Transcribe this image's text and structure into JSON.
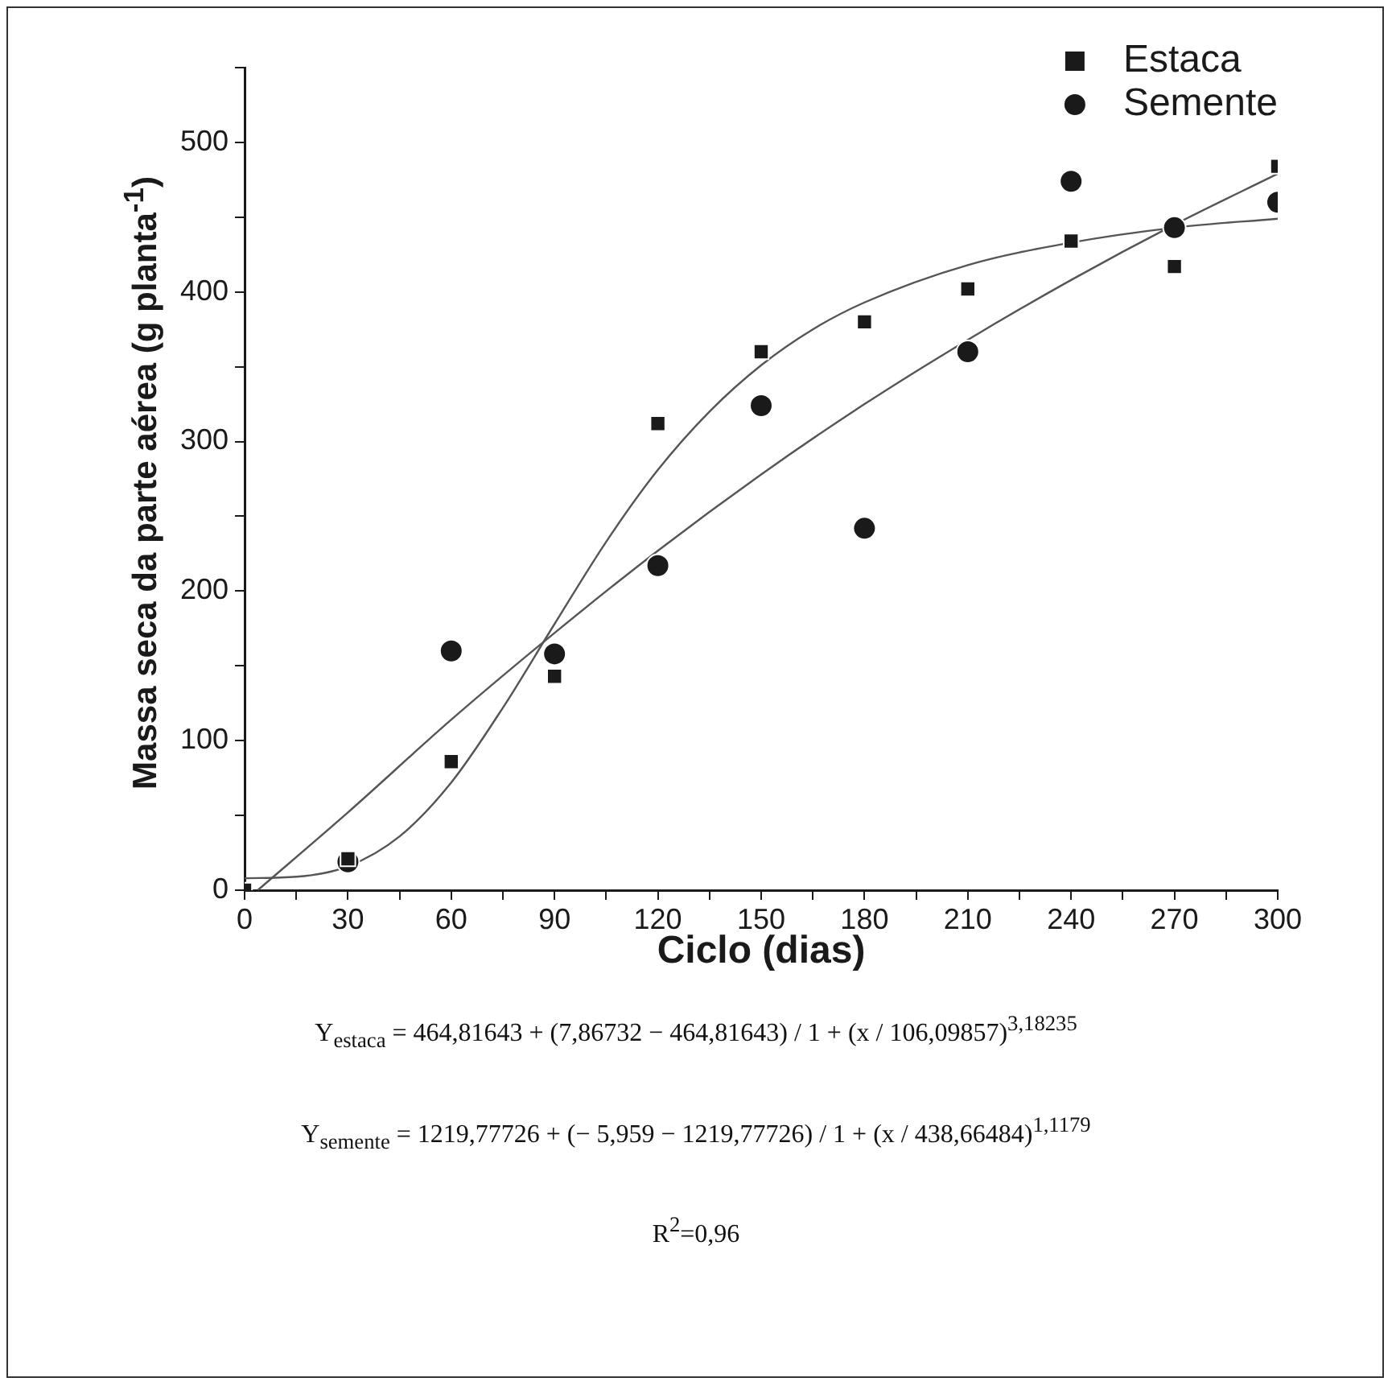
{
  "chart_data": {
    "type": "scatter",
    "xlabel": "Ciclo (dias)",
    "ylabel": "Massa seca da parte aérea (g planta$^{-1}$)",
    "xlim": [
      0,
      300
    ],
    "ylim": [
      0,
      550
    ],
    "xticks": [
      0,
      {
        "value": 15,
        "label": null
      },
      30,
      {
        "value": 45,
        "label": null
      },
      60,
      {
        "value": 75,
        "label": null
      },
      90,
      {
        "value": 105,
        "label": null
      },
      120,
      {
        "value": 135,
        "label": null
      },
      150,
      {
        "value": 165,
        "label": null
      },
      180,
      {
        "value": 195,
        "label": null
      },
      210,
      {
        "value": 225,
        "label": null
      },
      240,
      {
        "value": 255,
        "label": null
      },
      270,
      {
        "value": 285,
        "label": null
      },
      300
    ],
    "yticks": [
      0,
      {
        "value": 50,
        "label": null
      },
      100,
      {
        "value": 150,
        "label": null
      },
      200,
      {
        "value": 250,
        "label": null
      },
      300,
      {
        "value": 350,
        "label": null
      },
      400,
      {
        "value": 450,
        "label": null
      },
      500,
      {
        "value": 550,
        "label": null
      }
    ],
    "grid": false,
    "legend": "top right",
    "series": [
      {
        "name": "Estaca",
        "type": "scatter",
        "marker": "square",
        "color": "#1a1a1a",
        "x": [
          0,
          30,
          60,
          90,
          120,
          150,
          180,
          210,
          240,
          270,
          300
        ],
        "values": [
          0,
          21,
          86,
          143,
          312,
          360,
          380,
          402,
          434,
          417,
          484
        ]
      },
      {
        "name": "Semente",
        "type": "scatter",
        "marker": "circle",
        "color": "#1a1a1a",
        "x": [
          30,
          60,
          90,
          120,
          150,
          180,
          210,
          240,
          270,
          300
        ],
        "values": [
          19,
          160,
          158,
          217,
          324,
          242,
          360,
          474,
          443,
          460
        ]
      },
      {
        "type": "line",
        "marker": "none",
        "line_style": "solid",
        "color": "#555555",
        "x": [
          0,
          15,
          30,
          45,
          60,
          75,
          90,
          105,
          120,
          135,
          150,
          165,
          180,
          210,
          240,
          270,
          300
        ],
        "values": [
          8,
          9,
          16,
          36,
          72,
          122,
          178,
          233,
          281,
          320,
          351,
          375,
          393,
          418,
          433,
          443,
          449
        ]
      },
      {
        "type": "line",
        "marker": "none",
        "line_style": "solid",
        "color": "#555555",
        "x": [
          3.8,
          30,
          60,
          90,
          120,
          150,
          180,
          210,
          240,
          270,
          300
        ],
        "values": [
          0,
          52,
          114,
          172,
          227,
          278,
          325,
          368,
          408,
          445,
          479
        ]
      }
    ],
    "annotations": [
      "Y$_{estaca}$ = 464,81643 + (7,86732 − 464,81643) / 1 + (x / 106,09857)$^{3,18235}$",
      "Y$_{semente}$ = 1219,77726 + (− 5,959 − 1219,77726) / 1 + (x / 438,66484)$^{1,1179}$",
      "R$^{2}$=0,96"
    ]
  }
}
